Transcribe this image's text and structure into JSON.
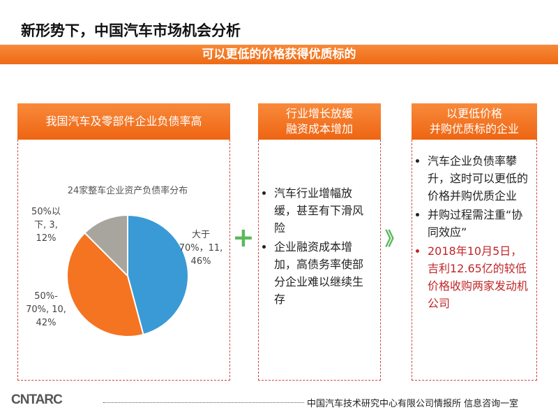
{
  "title": "新形势下，中国汽车市场机会分析",
  "banner": "可以更低的价格获得优质标的",
  "left": {
    "header": "我国汽车及零部件企业负债率高"
  },
  "middle": {
    "header_lines": [
      "行业增长放缓",
      "融资成本增加"
    ],
    "bullets": [
      "汽车行业增幅放缓，甚至有下滑风险",
      "企业融资成本增加，高债务率使部分企业难以继续生存"
    ]
  },
  "right": {
    "header_lines": [
      "以更低价格",
      "并购优质标的企业"
    ],
    "bullets": [
      "汽车企业负债率攀升，这时可以更低的价格并购优质企业",
      "并购过程需注重“协同效应”",
      "2018年10月5日，吉利12.65亿的较低价格收购两家发动机公司"
    ]
  },
  "plus_symbol": "+",
  "chevron_symbol": "》",
  "colors": {
    "accent": "#ee6a14",
    "green": "#5cb85c",
    "red": "#c0262a",
    "blue": "#3a9ad6",
    "orange": "#f47421",
    "gray": "#a8a49e"
  },
  "footer": {
    "logo": "CNTARC",
    "text": "中国汽车技术研究中心有限公司情报所  信息咨询一室"
  },
  "chart_data": {
    "type": "pie",
    "title": "24家整车企业资产负债率分布",
    "slices": [
      {
        "label_lines": [
          "大于",
          "70%，11,",
          "46%"
        ],
        "category": "大于70%",
        "count": 11,
        "percent": 46,
        "color": "#3a9ad6"
      },
      {
        "label_lines": [
          "50%-",
          "70%, 10,",
          "42%"
        ],
        "category": "50%-70%",
        "count": 10,
        "percent": 42,
        "color": "#f47421"
      },
      {
        "label_lines": [
          "50%以",
          "下, 3,",
          "12%"
        ],
        "category": "50%以下",
        "count": 3,
        "percent": 12,
        "color": "#a8a49e"
      }
    ]
  }
}
